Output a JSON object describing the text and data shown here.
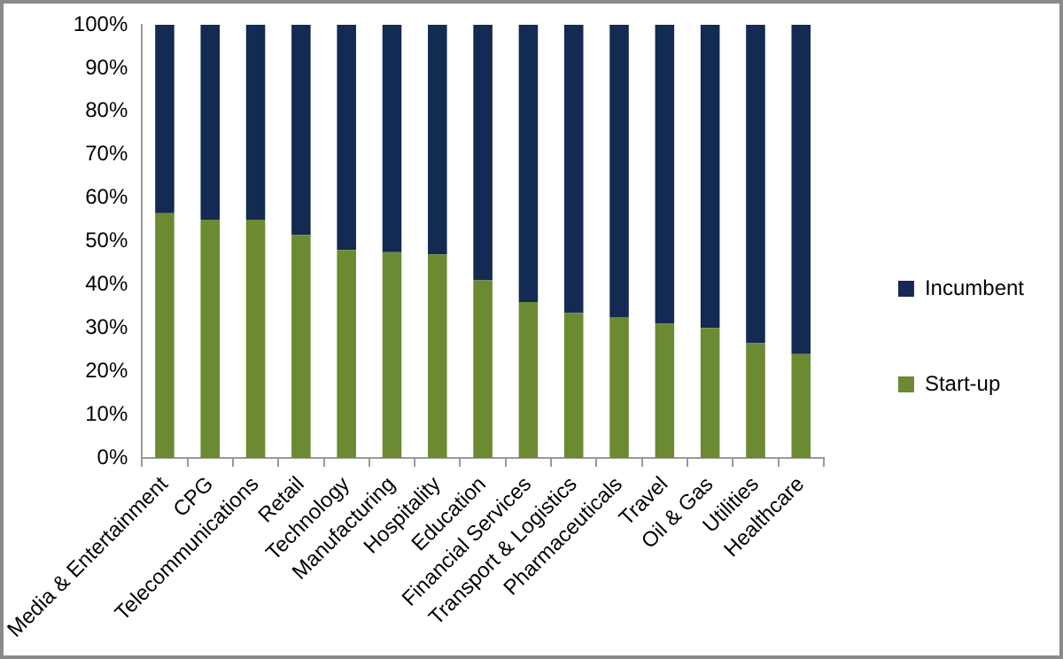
{
  "chart_data": {
    "type": "bar",
    "stacked": true,
    "categories": [
      "Media & Entertainment",
      "CPG",
      "Telecommunications",
      "Retail",
      "Technology",
      "Manufacturing",
      "Hospitality",
      "Education",
      "Financial Services",
      "Transport & Logistics",
      "Pharmaceuticals",
      "Travel",
      "Oil & Gas",
      "Utilities",
      "Healthcare"
    ],
    "series": [
      {
        "name": "Start-up",
        "color": "#6b8a31",
        "values": [
          56.5,
          55,
          55,
          51.5,
          48,
          47.5,
          47,
          41,
          36,
          33.5,
          32.5,
          31,
          30,
          26.5,
          24
        ]
      },
      {
        "name": "Incumbent",
        "color": "#132a52",
        "values": [
          43.5,
          45,
          45,
          48.5,
          52,
          52.5,
          53,
          59,
          64,
          66.5,
          67.5,
          69,
          70,
          73.5,
          76
        ]
      }
    ],
    "ylim": [
      0,
      100
    ],
    "yticks": [
      {
        "value": 0,
        "label": "0%"
      },
      {
        "value": 10,
        "label": "10%"
      },
      {
        "value": 20,
        "label": "20%"
      },
      {
        "value": 30,
        "label": "30%"
      },
      {
        "value": 40,
        "label": "40%"
      },
      {
        "value": 50,
        "label": "50%"
      },
      {
        "value": 60,
        "label": "60%"
      },
      {
        "value": 70,
        "label": "70%"
      },
      {
        "value": 80,
        "label": "80%"
      },
      {
        "value": 90,
        "label": "90%"
      },
      {
        "value": 100,
        "label": "100%"
      }
    ],
    "grid": false,
    "legend": "right"
  }
}
